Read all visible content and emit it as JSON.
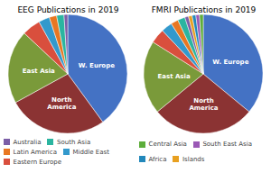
{
  "chart_data": [
    {
      "type": "pie",
      "title": "EEG Publications in 2019",
      "categories": [
        "W. Europe",
        "North America",
        "East Asia",
        "Eastern Europe",
        "Middle East",
        "Latin America",
        "South Asia",
        "Australia"
      ],
      "values": [
        40,
        27,
        20,
        5,
        3,
        2,
        2,
        1
      ],
      "colors": [
        "#4472C4",
        "#8B3333",
        "#7A9A3A",
        "#D94F3D",
        "#3399CC",
        "#E87722",
        "#2BB5A0",
        "#7B5EA7"
      ],
      "annotations": [
        "W. Europe",
        "North\nAmerica",
        "East Asia"
      ],
      "legend": "lower left",
      "legend_labels": [
        "Australia",
        "South Asia",
        "Latin America",
        "Middle East",
        "Eastern Europe"
      ],
      "legend_colors": [
        "#7B5EA7",
        "#2BB5A0",
        "#E87722",
        "#3399CC",
        "#D94F3D"
      ]
    },
    {
      "type": "pie",
      "title": "FMRI Publications in 2019",
      "categories": [
        "W. Europe",
        "North America",
        "East Asia",
        "Eastern Europe",
        "Middle East",
        "Latin America",
        "South Asia",
        "Australia",
        "Islands",
        "Africa",
        "South East Asia",
        "Central Asia"
      ],
      "values": [
        36,
        28,
        20,
        4,
        3,
        2,
        2,
        1,
        1,
        1,
        1,
        1
      ],
      "colors": [
        "#4472C4",
        "#8B3333",
        "#7A9A3A",
        "#D94F3D",
        "#3399CC",
        "#E87722",
        "#2BB5A0",
        "#7B5EA7",
        "#E8A020",
        "#2288BB",
        "#9B59B6",
        "#5DAD3A"
      ],
      "annotations": [
        "W. Europe",
        "North\nAmerica",
        "East Asia"
      ],
      "legend": "lower left",
      "legend_labels": [
        "Central Asia",
        "South East Asia",
        "Africa",
        "Islands"
      ],
      "legend_colors": [
        "#5DAD3A",
        "#9B59B6",
        "#2288BB",
        "#E8A020"
      ]
    }
  ]
}
